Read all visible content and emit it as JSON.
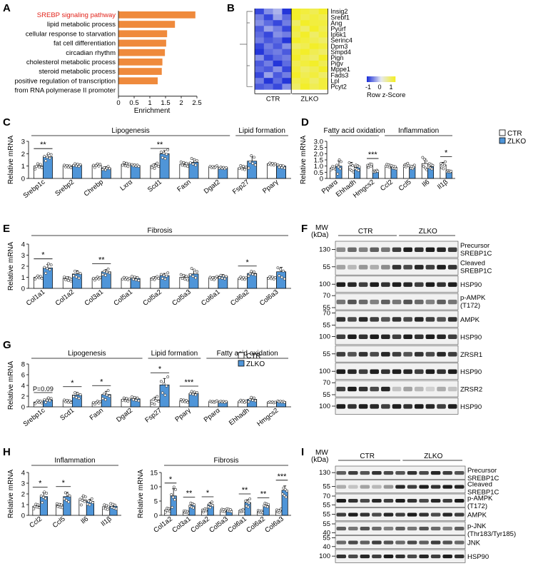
{
  "colors": {
    "ctr": "#ffffff",
    "zlko": "#4f95d8",
    "bar_orange": "#ef8a3c",
    "highlight": "#e2231a",
    "heat_low": "#2436d9",
    "heat_mid": "#e6e9f2",
    "heat_high": "#f3ee2a"
  },
  "panels": {
    "A": "A",
    "B": "B",
    "C": "C",
    "D": "D",
    "E": "E",
    "F": "F",
    "G": "G",
    "H": "H",
    "I": "I"
  },
  "legend": {
    "ctr": "CTR",
    "zlko": "ZLKO"
  },
  "chart_data": [
    {
      "id": "A",
      "type": "bar",
      "orientation": "horizontal",
      "categories": [
        "SREBP signaling pathway",
        "lipid metabolic process",
        "cellular response to starvation",
        "fat cell differentiation",
        "circadian rhythm",
        "cholesterol metabolic process",
        "steroid metabolic process",
        "positive regulation of transcription",
        "from RNA polymerase II promoter"
      ],
      "values": [
        2.45,
        1.8,
        1.55,
        1.52,
        1.48,
        1.4,
        1.38,
        1.25,
        null
      ],
      "highlight_index": 0,
      "xticks": [
        "0",
        "0.5",
        "1",
        "1.5",
        "2",
        "2.5"
      ],
      "xlim": [
        0,
        2.5
      ],
      "xlabel": "Enrichment"
    },
    {
      "id": "B",
      "type": "heatmap",
      "rows": [
        "Insig2",
        "Srebf1",
        "Ang",
        "Pyurf",
        "Ip6k1",
        "Serinc4",
        "Dpm3",
        "Smpd4",
        "Pign",
        "Pigv",
        "Mppe1",
        "Fads3",
        "Lpl",
        "Pcyt2"
      ],
      "groups": [
        "CTR",
        "ZLKO"
      ],
      "values": [
        [
          -0.9,
          -0.5,
          -0.3,
          -1.0,
          1.0,
          0.9,
          0.8,
          1.1
        ],
        [
          -0.6,
          -0.9,
          -0.4,
          -0.7,
          1.0,
          0.8,
          0.9,
          0.8
        ],
        [
          -0.5,
          -0.7,
          -0.9,
          -0.6,
          0.7,
          1.0,
          0.9,
          0.9
        ],
        [
          -0.8,
          -0.4,
          -0.6,
          -0.9,
          0.9,
          0.7,
          1.0,
          0.8
        ],
        [
          -0.7,
          -0.9,
          -0.5,
          -0.6,
          0.8,
          1.0,
          0.7,
          0.9
        ],
        [
          -0.6,
          -0.8,
          -0.7,
          -1.0,
          1.0,
          0.9,
          0.8,
          0.7
        ],
        [
          -0.9,
          -0.6,
          -0.8,
          -0.5,
          0.7,
          0.8,
          1.0,
          0.9
        ],
        [
          -1.0,
          -0.7,
          -0.6,
          -0.8,
          0.9,
          1.0,
          0.8,
          0.7
        ],
        [
          -0.5,
          -0.9,
          -0.7,
          -0.6,
          1.0,
          0.8,
          0.7,
          1.0
        ],
        [
          -0.8,
          -0.6,
          -1.0,
          -0.7,
          0.8,
          0.9,
          1.0,
          0.8
        ],
        [
          -0.7,
          -0.8,
          -0.5,
          -0.9,
          0.9,
          0.7,
          0.8,
          1.0
        ],
        [
          -0.9,
          -0.4,
          -0.8,
          -0.6,
          1.0,
          0.8,
          0.9,
          0.7
        ],
        [
          -0.6,
          -1.0,
          -0.7,
          -1.0,
          0.8,
          0.9,
          0.7,
          0.9
        ],
        [
          -0.8,
          -0.7,
          -0.9,
          -0.5,
          0.7,
          1.0,
          0.8,
          0.9
        ]
      ],
      "scale_label": "Row z-Score",
      "scale_ticks": [
        "-1",
        "0",
        "1"
      ]
    },
    {
      "id": "C",
      "type": "bar",
      "ylabel": "Relative mRNA",
      "ylim": [
        0,
        3
      ],
      "yticks": [
        "0",
        "1",
        "2",
        "3"
      ],
      "groups": [
        {
          "label": "Lipogenesis",
          "from": 0,
          "to": 6
        },
        {
          "label": "Lipid formation",
          "from": 7,
          "to": 8
        }
      ],
      "categories": [
        "Srebp1c",
        "Srebp2",
        "Chrebp",
        "Lxrα",
        "Scd1",
        "Fasn",
        "Dgat2",
        "Fsp27",
        "Pparγ"
      ],
      "series": [
        {
          "name": "CTR",
          "values": [
            1.0,
            1.0,
            1.05,
            1.15,
            1.05,
            1.15,
            0.95,
            0.85,
            1.2
          ],
          "err": [
            0.15,
            0.08,
            0.1,
            0.15,
            0.15,
            0.15,
            0.06,
            0.15,
            0.08
          ]
        },
        {
          "name": "ZLKO",
          "values": [
            1.75,
            1.1,
            0.85,
            1.05,
            2.0,
            1.3,
            0.88,
            1.4,
            1.0
          ],
          "err": [
            0.2,
            0.1,
            0.1,
            0.06,
            0.25,
            0.25,
            0.06,
            0.35,
            0.1
          ]
        }
      ],
      "sig": [
        {
          "i": 0,
          "text": "**"
        },
        {
          "i": 4,
          "text": "**"
        }
      ]
    },
    {
      "id": "D",
      "type": "bar",
      "ylabel": "Relative mRNA",
      "ylim": [
        0,
        3
      ],
      "yticks": [
        "0",
        "0.5",
        "1.0",
        "1.5",
        "2.0",
        "2.5",
        "3.0"
      ],
      "groups": [
        {
          "label": "Fatty acid oxidation",
          "from": 0,
          "to": 2
        },
        {
          "label": "Inflammation",
          "from": 3,
          "to": 6
        }
      ],
      "categories": [
        "Pparα",
        "Ehhadh",
        "Hmgcs2",
        "Ccl2",
        "Ccl5",
        "Il6",
        "Il1β"
      ],
      "series": [
        {
          "name": "CTR",
          "values": [
            0.85,
            1.0,
            1.05,
            1.05,
            1.1,
            1.2,
            1.1
          ],
          "err": [
            0.1,
            0.3,
            0.1,
            0.1,
            0.1,
            0.4,
            0.2
          ]
        },
        {
          "name": "ZLKO",
          "values": [
            1.0,
            0.9,
            0.6,
            0.9,
            0.95,
            0.95,
            0.6
          ],
          "err": [
            0.4,
            0.2,
            0.05,
            0.1,
            0.1,
            0.2,
            0.05
          ]
        }
      ],
      "sig": [
        {
          "i": 2,
          "text": "***"
        },
        {
          "i": 6,
          "text": "*"
        }
      ]
    },
    {
      "id": "E",
      "type": "bar",
      "ylabel": "Relative mRNA",
      "ylim": [
        0,
        4
      ],
      "yticks": [
        "0",
        "1",
        "2",
        "3",
        "4"
      ],
      "groups": [
        {
          "label": "Fibrosis",
          "from": 0,
          "to": 9
        }
      ],
      "categories": [
        "Col1a1",
        "Col1a2",
        "Col3a1",
        "Col5a1",
        "Col5a2",
        "Col5a3",
        "Col6a1",
        "Col6a2",
        "Col6a3"
      ],
      "series": [
        {
          "name": "CTR",
          "values": [
            1.0,
            0.9,
            0.9,
            0.9,
            0.95,
            1.0,
            0.95,
            0.9,
            1.0
          ],
          "err": [
            0.1,
            0.15,
            0.1,
            0.1,
            0.1,
            0.2,
            0.1,
            0.1,
            0.1
          ]
        },
        {
          "name": "ZLKO",
          "values": [
            1.85,
            1.3,
            1.5,
            0.9,
            1.15,
            1.3,
            1.1,
            1.35,
            1.5
          ],
          "err": [
            0.3,
            0.3,
            0.2,
            0.15,
            0.2,
            0.4,
            0.15,
            0.15,
            0.4
          ]
        }
      ],
      "sig": [
        {
          "i": 0,
          "text": "*"
        },
        {
          "i": 2,
          "text": "**"
        },
        {
          "i": 7,
          "text": "*"
        }
      ]
    },
    {
      "id": "G",
      "type": "bar",
      "ylabel": "Relative mRNA",
      "ylim": [
        0,
        8
      ],
      "yticks": [
        "0",
        "2",
        "4",
        "6",
        "8"
      ],
      "groups": [
        {
          "label": "Lipogenesis",
          "from": 0,
          "to": 3
        },
        {
          "label": "Lipid formation",
          "from": 4,
          "to": 5
        },
        {
          "label": "Fatty acid oxidation",
          "from": 6,
          "to": 8
        }
      ],
      "categories": [
        "Srebp1c",
        "Scd1",
        "Fasn",
        "Dgat2",
        "Fsp27",
        "Pparγ",
        "Pparα",
        "Ehhadh",
        "Hmgcs2"
      ],
      "series": [
        {
          "name": "CTR",
          "values": [
            0.9,
            1.1,
            0.8,
            1.4,
            1.3,
            1.1,
            1.0,
            1.0,
            0.9
          ],
          "err": [
            0.2,
            0.2,
            0.2,
            0.3,
            0.5,
            0.2,
            0.1,
            0.2,
            0.1
          ]
        },
        {
          "name": "ZLKO",
          "values": [
            1.3,
            2.2,
            2.3,
            1.5,
            4.1,
            2.5,
            1.0,
            1.4,
            1.0
          ],
          "err": [
            0.3,
            0.5,
            0.6,
            0.3,
            1.2,
            0.3,
            0.1,
            0.3,
            0.1
          ]
        }
      ],
      "sig": [
        {
          "i": 0,
          "text": "P=0.09"
        },
        {
          "i": 1,
          "text": "*"
        },
        {
          "i": 2,
          "text": "*"
        },
        {
          "i": 4,
          "text": "*"
        },
        {
          "i": 5,
          "text": "***"
        }
      ]
    },
    {
      "id": "H1",
      "type": "bar",
      "ylabel": "Relative mRNA",
      "ylim": [
        0,
        4
      ],
      "yticks": [
        "0",
        "1",
        "2",
        "3",
        "4"
      ],
      "groups": [
        {
          "label": "Inflammation",
          "from": 0,
          "to": 3
        }
      ],
      "categories": [
        "Ccl2",
        "Ccl5",
        "Il6",
        "Il1β"
      ],
      "series": [
        {
          "name": "CTR",
          "values": [
            0.85,
            0.95,
            1.45,
            0.8
          ],
          "err": [
            0.15,
            0.15,
            0.3,
            0.2
          ]
        },
        {
          "name": "ZLKO",
          "values": [
            1.75,
            1.75,
            1.3,
            0.85
          ],
          "err": [
            0.35,
            0.4,
            0.2,
            0.2
          ]
        }
      ],
      "sig": [
        {
          "i": 0,
          "text": "*"
        },
        {
          "i": 1,
          "text": "*"
        }
      ]
    },
    {
      "id": "H2",
      "type": "bar",
      "ylabel": "Relative mRNA",
      "ylim": [
        0,
        15
      ],
      "yticks": [
        "0",
        "5",
        "10",
        "15"
      ],
      "groups": [
        {
          "label": "Fibrosis",
          "from": 0,
          "to": 6
        }
      ],
      "categories": [
        "Col1a2",
        "Col3a1",
        "Col5a2",
        "Col5a3",
        "Col6a1",
        "Col6a2",
        "Col6a3"
      ],
      "series": [
        {
          "name": "CTR",
          "values": [
            1.9,
            1.3,
            1.8,
            1.8,
            1.7,
            1.3,
            1.7
          ],
          "err": [
            0.5,
            0.3,
            0.4,
            0.4,
            0.3,
            0.3,
            0.4
          ]
        },
        {
          "name": "ZLKO",
          "values": [
            6.8,
            3.6,
            3.8,
            1.8,
            4.5,
            3.5,
            8.8
          ],
          "err": [
            2.5,
            0.8,
            0.7,
            0.4,
            1.0,
            0.6,
            1.5
          ]
        }
      ],
      "sig": [
        {
          "i": 0,
          "text": "*"
        },
        {
          "i": 1,
          "text": "**"
        },
        {
          "i": 2,
          "text": "*"
        },
        {
          "i": 4,
          "text": "**"
        },
        {
          "i": 5,
          "text": "**"
        },
        {
          "i": 6,
          "text": "***"
        }
      ]
    }
  ],
  "blot_F": {
    "mw_label": "MW",
    "kda_label": "(kDa)",
    "group_ctr": "CTR",
    "group_zlko": "ZLKO",
    "rows": [
      {
        "label": "Precursor\nSREBP1C",
        "mw": [
          "130"
        ],
        "ctr": 0.55,
        "zlko": 0.9
      },
      {
        "label": "Cleaved\nSREBP1C",
        "mw": [
          "55"
        ],
        "ctr": 0.35,
        "zlko": 0.85
      },
      {
        "label": "HSP90",
        "mw": [
          "100"
        ],
        "ctr": 0.9,
        "zlko": 0.9
      },
      {
        "label": "p-AMPK\n(T172)",
        "mw": [
          "70",
          "55"
        ],
        "ctr": 0.6,
        "zlko": 0.6
      },
      {
        "label": "AMPK",
        "mw": [
          "70",
          "55"
        ],
        "ctr": 0.8,
        "zlko": 0.8
      },
      {
        "label": "HSP90",
        "mw": [
          "100"
        ],
        "ctr": 0.9,
        "zlko": 0.9
      },
      {
        "label": "ZRSR1",
        "mw": [
          "55"
        ],
        "ctr": 0.8,
        "zlko": 0.8
      },
      {
        "label": "HSP90",
        "mw": [
          "100"
        ],
        "ctr": 0.9,
        "zlko": 0.9
      },
      {
        "label": "ZRSR2",
        "mw": [
          "70",
          "55"
        ],
        "ctr": 0.85,
        "zlko": 0.25
      },
      {
        "label": "HSP90",
        "mw": [
          "100"
        ],
        "ctr": 0.9,
        "zlko": 0.9
      }
    ]
  },
  "blot_I": {
    "mw_label": "MW",
    "kda_label": "(kDa)",
    "group_ctr": "CTR",
    "group_zlko": "ZLKO",
    "rows": [
      {
        "label": "Precursor\nSREBP1C",
        "mw": [
          "130"
        ],
        "ctr": 0.75,
        "zlko": 0.8
      },
      {
        "label": "Cleaved\nSREBP1C",
        "mw": [
          "55"
        ],
        "ctr": 0.3,
        "zlko": 0.9
      },
      {
        "label": "p-AMPK\n(T172)",
        "mw": [
          "70",
          "55"
        ],
        "ctr": 0.85,
        "zlko": 0.85
      },
      {
        "label": "AMPK",
        "mw": [
          "55"
        ],
        "ctr": 0.85,
        "zlko": 0.85
      },
      {
        "label": "p-JNK\n(Thr183/Tyr185)",
        "mw": [
          "55",
          "40"
        ],
        "ctr": 0.6,
        "zlko": 0.6
      },
      {
        "label": "JNK",
        "mw": [
          "55",
          "40"
        ],
        "ctr": 0.7,
        "zlko": 0.7
      },
      {
        "label": "HSP90",
        "mw": [
          "100"
        ],
        "ctr": 0.85,
        "zlko": 0.85
      }
    ]
  }
}
